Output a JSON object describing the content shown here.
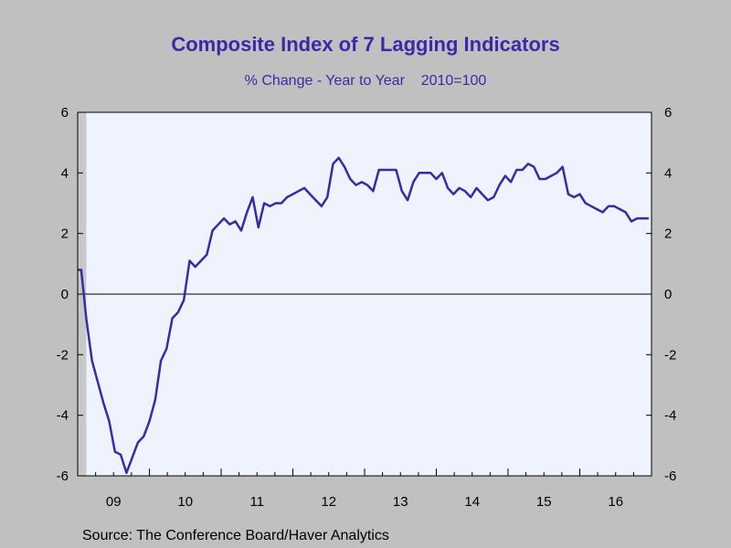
{
  "chart_data": {
    "type": "line",
    "title": "Composite Index of 7 Lagging Indicators",
    "subtitle": "% Change - Year to Year    2010=100",
    "source": "Source:  The Conference Board/Haver Analytics",
    "xlabel": "",
    "ylabel": "",
    "ylim": [
      -6,
      6
    ],
    "yticks": [
      -6,
      -4,
      -2,
      0,
      2,
      4,
      6
    ],
    "ytick_labels": [
      "-6",
      "-4",
      "-2",
      "0",
      "2",
      "4",
      "6"
    ],
    "xlim": [
      2009.0,
      2017.0
    ],
    "xtick_labels": [
      "09",
      "10",
      "11",
      "12",
      "13",
      "14",
      "15",
      "16"
    ],
    "recession_shading": [
      2009.0,
      2009.12
    ],
    "grid": false,
    "zero_line": true,
    "series": [
      {
        "color": "#3a2aa8",
        "x": [
          2009.0,
          2009.05,
          2009.12,
          2009.2,
          2009.28,
          2009.36,
          2009.44,
          2009.52,
          2009.6,
          2009.68,
          2009.76,
          2009.84,
          2009.92,
          2010.0,
          2010.08,
          2010.16,
          2010.24,
          2010.32,
          2010.4,
          2010.48,
          2010.56,
          2010.64,
          2010.72,
          2010.8,
          2010.88,
          2010.96,
          2011.04,
          2011.12,
          2011.2,
          2011.28,
          2011.36,
          2011.44,
          2011.52,
          2011.6,
          2011.68,
          2011.76,
          2011.84,
          2011.92,
          2012.0,
          2012.08,
          2012.16,
          2012.24,
          2012.32,
          2012.4,
          2012.48,
          2012.56,
          2012.64,
          2012.72,
          2012.8,
          2012.88,
          2012.96,
          2013.04,
          2013.12,
          2013.2,
          2013.28,
          2013.36,
          2013.44,
          2013.52,
          2013.6,
          2013.68,
          2013.76,
          2013.84,
          2013.92,
          2014.0,
          2014.08,
          2014.16,
          2014.24,
          2014.32,
          2014.4,
          2014.48,
          2014.56,
          2014.64,
          2014.72,
          2014.8,
          2014.88,
          2014.96,
          2015.04,
          2015.12,
          2015.2,
          2015.28,
          2015.36,
          2015.44,
          2015.52,
          2015.6,
          2015.68,
          2015.76,
          2015.84,
          2015.92,
          2016.0,
          2016.08,
          2016.16,
          2016.24,
          2016.32,
          2016.4,
          2016.48,
          2016.56,
          2016.64,
          2016.72,
          2016.8,
          2016.88,
          2016.96
        ],
        "values": [
          0.8,
          0.8,
          -0.8,
          -2.2,
          -2.9,
          -3.6,
          -4.2,
          -5.2,
          -5.3,
          -5.9,
          -5.4,
          -4.9,
          -4.7,
          -4.2,
          -3.5,
          -2.2,
          -1.8,
          -0.8,
          -0.6,
          -0.2,
          1.1,
          0.9,
          1.1,
          1.3,
          2.1,
          2.3,
          2.5,
          2.3,
          2.4,
          2.1,
          2.7,
          3.2,
          2.2,
          3.0,
          2.9,
          3.0,
          3.0,
          3.2,
          3.3,
          3.4,
          3.5,
          3.3,
          3.1,
          2.9,
          3.2,
          4.3,
          4.5,
          4.2,
          3.8,
          3.6,
          3.7,
          3.6,
          3.4,
          4.1,
          4.1,
          4.1,
          4.1,
          3.4,
          3.1,
          3.7,
          4.0,
          4.0,
          4.0,
          3.8,
          4.0,
          3.5,
          3.3,
          3.5,
          3.4,
          3.2,
          3.5,
          3.3,
          3.1,
          3.2,
          3.6,
          3.9,
          3.7,
          4.1,
          4.1,
          4.3,
          4.2,
          3.8,
          3.8,
          3.9,
          4.0,
          4.2,
          3.3,
          3.2,
          3.3,
          3.0,
          2.9,
          2.8,
          2.7,
          2.9,
          2.9,
          2.8,
          2.7,
          2.4,
          2.5,
          2.5,
          2.5
        ]
      }
    ]
  }
}
